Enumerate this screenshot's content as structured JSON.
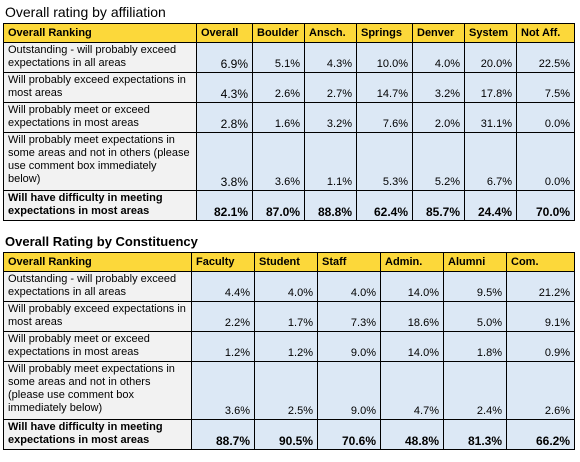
{
  "table1": {
    "title": "Overall rating by affiliation",
    "headers": [
      "Overall Ranking",
      "Overall",
      "Boulder",
      "Ansch.",
      "Springs",
      "Denver",
      "System",
      "Not Aff."
    ],
    "rows": [
      {
        "label": "Outstanding - will probably exceed expectations in all areas",
        "values": [
          "6.9%",
          "5.1%",
          "4.3%",
          "10.0%",
          "4.0%",
          "20.0%",
          "22.5%"
        ]
      },
      {
        "label": "Will probably exceed expectations in most areas",
        "values": [
          "4.3%",
          "2.6%",
          "2.7%",
          "14.7%",
          "3.2%",
          "17.8%",
          "7.5%"
        ]
      },
      {
        "label": "Will probably meet or exceed expectations in most areas",
        "values": [
          "2.8%",
          "1.6%",
          "3.2%",
          "7.6%",
          "2.0%",
          "31.1%",
          "0.0%"
        ]
      },
      {
        "label": "Will probably meet expectations in some areas and not in others (please use comment box immediately below)",
        "values": [
          "3.8%",
          "3.6%",
          "1.1%",
          "5.3%",
          "5.2%",
          "6.7%",
          "0.0%"
        ]
      },
      {
        "label": "Will have difficulty in meeting expectations in most areas",
        "values": [
          "82.1%",
          "87.0%",
          "88.8%",
          "62.4%",
          "85.7%",
          "24.4%",
          "70.0%"
        ],
        "bold": true
      }
    ]
  },
  "table2": {
    "title": "Overall Rating by Constituency",
    "headers": [
      "Overall Ranking",
      "Faculty",
      "Student",
      "Staff",
      "Admin.",
      "Alumni",
      "Com."
    ],
    "rows": [
      {
        "label": "Outstanding - will probably exceed expectations in all areas",
        "values": [
          "4.4%",
          "4.0%",
          "4.0%",
          "14.0%",
          "9.5%",
          "21.2%"
        ]
      },
      {
        "label": "Will probably exceed expectations in most areas",
        "values": [
          "2.2%",
          "1.7%",
          "7.3%",
          "18.6%",
          "5.0%",
          "9.1%"
        ]
      },
      {
        "label": "Will probably meet or exceed expectations in most areas",
        "values": [
          "1.2%",
          "1.2%",
          "9.0%",
          "14.0%",
          "1.8%",
          "0.9%"
        ]
      },
      {
        "label": "Will probably meet expectations in some areas and not in others (please use comment box immediately below)",
        "values": [
          "3.6%",
          "2.5%",
          "9.0%",
          "4.7%",
          "2.4%",
          "2.6%"
        ]
      },
      {
        "label": "Will have difficulty in meeting expectations in most areas",
        "values": [
          "88.7%",
          "90.5%",
          "70.6%",
          "48.8%",
          "81.3%",
          "66.2%"
        ],
        "bold": true
      }
    ]
  }
}
